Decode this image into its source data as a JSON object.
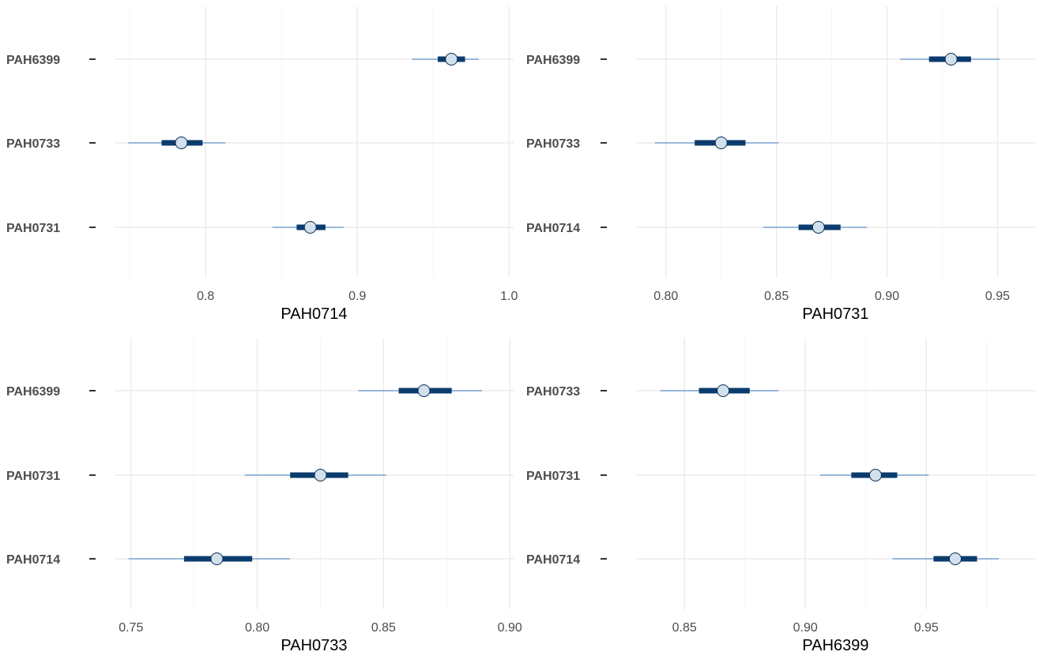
{
  "colors": {
    "ci_thin": "#3d7cc0",
    "ci_thick": "#0b3c6e",
    "point_fill": "#d2e0ee",
    "point_stroke": "#0b2a4a",
    "grid": "#ebebeb"
  },
  "chart_data": [
    {
      "type": "interval",
      "xlabel": "PAH0714",
      "xlim": [
        0.74,
        1.003
      ],
      "xticks": [
        0.8,
        0.9,
        1.0
      ],
      "xtick_labels": [
        "0.8",
        "0.9",
        "1.0"
      ],
      "grid": true,
      "rows": [
        {
          "label": "PAH6399",
          "estimate": 0.962,
          "inner": [
            0.953,
            0.971
          ],
          "outer": [
            0.936,
            0.98
          ]
        },
        {
          "label": "PAH0733",
          "estimate": 0.784,
          "inner": [
            0.771,
            0.798
          ],
          "outer": [
            0.749,
            0.813
          ]
        },
        {
          "label": "PAH0731",
          "estimate": 0.869,
          "inner": [
            0.86,
            0.879
          ],
          "outer": [
            0.844,
            0.891
          ]
        }
      ]
    },
    {
      "type": "interval",
      "xlabel": "PAH0731",
      "xlim": [
        0.7865,
        0.967
      ],
      "xticks": [
        0.8,
        0.85,
        0.9,
        0.95
      ],
      "xtick_labels": [
        "0.80",
        "0.85",
        "0.90",
        "0.95"
      ],
      "grid": true,
      "rows": [
        {
          "label": "PAH6399",
          "estimate": 0.929,
          "inner": [
            0.919,
            0.938
          ],
          "outer": [
            0.906,
            0.951
          ]
        },
        {
          "label": "PAH0733",
          "estimate": 0.825,
          "inner": [
            0.813,
            0.836
          ],
          "outer": [
            0.795,
            0.851
          ]
        },
        {
          "label": "PAH0714",
          "estimate": 0.869,
          "inner": [
            0.86,
            0.879
          ],
          "outer": [
            0.844,
            0.891
          ]
        }
      ]
    },
    {
      "type": "interval",
      "xlabel": "PAH0733",
      "xlim": [
        0.7435,
        0.9015
      ],
      "xticks": [
        0.75,
        0.8,
        0.85,
        0.9
      ],
      "xtick_labels": [
        "0.75",
        "0.80",
        "0.85",
        "0.90"
      ],
      "grid": true,
      "rows": [
        {
          "label": "PAH6399",
          "estimate": 0.866,
          "inner": [
            0.856,
            0.877
          ],
          "outer": [
            0.84,
            0.889
          ]
        },
        {
          "label": "PAH0731",
          "estimate": 0.825,
          "inner": [
            0.813,
            0.836
          ],
          "outer": [
            0.795,
            0.851
          ]
        },
        {
          "label": "PAH0714",
          "estimate": 0.784,
          "inner": [
            0.771,
            0.798
          ],
          "outer": [
            0.749,
            0.813
          ]
        }
      ]
    },
    {
      "type": "interval",
      "xlabel": "PAH6399",
      "xlim": [
        0.83,
        0.995
      ],
      "xticks": [
        0.85,
        0.9,
        0.95
      ],
      "xtick_labels": [
        "0.85",
        "0.90",
        "0.95"
      ],
      "grid": true,
      "rows": [
        {
          "label": "PAH0733",
          "estimate": 0.866,
          "inner": [
            0.856,
            0.877
          ],
          "outer": [
            0.84,
            0.889
          ]
        },
        {
          "label": "PAH0731",
          "estimate": 0.929,
          "inner": [
            0.919,
            0.938
          ],
          "outer": [
            0.906,
            0.951
          ]
        },
        {
          "label": "PAH0714",
          "estimate": 0.962,
          "inner": [
            0.953,
            0.971
          ],
          "outer": [
            0.936,
            0.98
          ]
        }
      ]
    }
  ]
}
